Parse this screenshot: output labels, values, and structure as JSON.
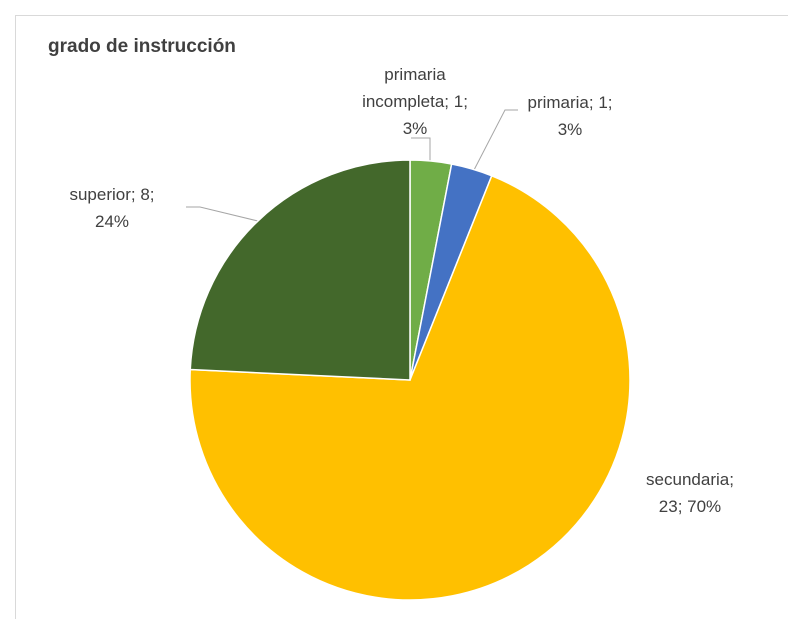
{
  "chart_data": {
    "type": "pie",
    "title": "grado de instrucción",
    "values": [
      1,
      1,
      23,
      8
    ],
    "value_labels": [
      [
        "primaria",
        "incompleta; 1;",
        "3%"
      ],
      [
        "primaria; 1;",
        "3%"
      ],
      [
        "secundaria;",
        "23; 70%"
      ],
      [
        "superior; 8;",
        "24%"
      ]
    ],
    "colors": [
      "#70ad47",
      "#4472c4",
      "#ffc000",
      "#43682b"
    ]
  }
}
